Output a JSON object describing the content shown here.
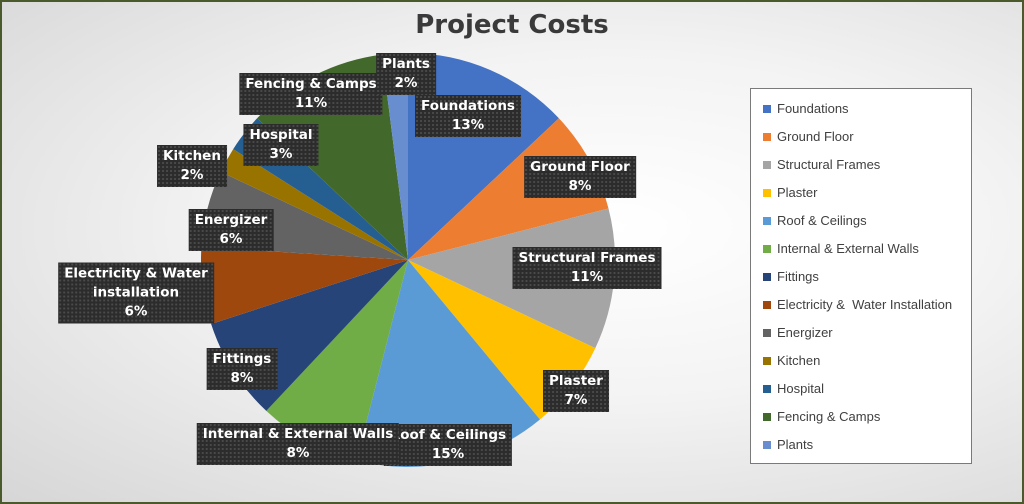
{
  "chart_data": {
    "type": "pie",
    "title": "Project Costs",
    "legend_position": "right",
    "slices": [
      {
        "name": "Foundations",
        "value": 13,
        "label": "Foundations",
        "pct": "13%",
        "color": "#4472C4"
      },
      {
        "name": "Ground Floor",
        "value": 8,
        "label": "Ground Floor",
        "pct": "8%",
        "color": "#ED7D31"
      },
      {
        "name": "Structural Frames",
        "value": 11,
        "label": "Structural Frames",
        "pct": "11%",
        "color": "#A5A5A5"
      },
      {
        "name": "Plaster",
        "value": 7,
        "label": "Plaster",
        "pct": "7%",
        "color": "#FFC000"
      },
      {
        "name": "Roof & Ceilings",
        "value": 15,
        "label": "Roof & Ceilings",
        "pct": "15%",
        "color": "#5B9BD5"
      },
      {
        "name": "Internal & External Walls",
        "value": 8,
        "label": "Internal & External Walls",
        "pct": "8%",
        "color": "#70AD47"
      },
      {
        "name": "Fittings",
        "value": 8,
        "label": "Fittings",
        "pct": "8%",
        "color": "#264478"
      },
      {
        "name": "Electricity &  Water Installation",
        "value": 6,
        "label": "Electricity & Water installation",
        "pct": "6%",
        "color": "#9E480E"
      },
      {
        "name": "Energizer",
        "value": 6,
        "label": "Energizer",
        "pct": "6%",
        "color": "#636363"
      },
      {
        "name": "Kitchen",
        "value": 2,
        "label": "Kitchen",
        "pct": "2%",
        "color": "#997300"
      },
      {
        "name": "Hospital",
        "value": 3,
        "label": "Hospital",
        "pct": "3%",
        "color": "#255E91"
      },
      {
        "name": "Fencing & Camps",
        "value": 11,
        "label": "Fencing & Camps",
        "pct": "11%",
        "color": "#43682B"
      },
      {
        "name": "Plants",
        "value": 2,
        "label": "Plants",
        "pct": "2%",
        "color": "#698ED0"
      }
    ]
  }
}
